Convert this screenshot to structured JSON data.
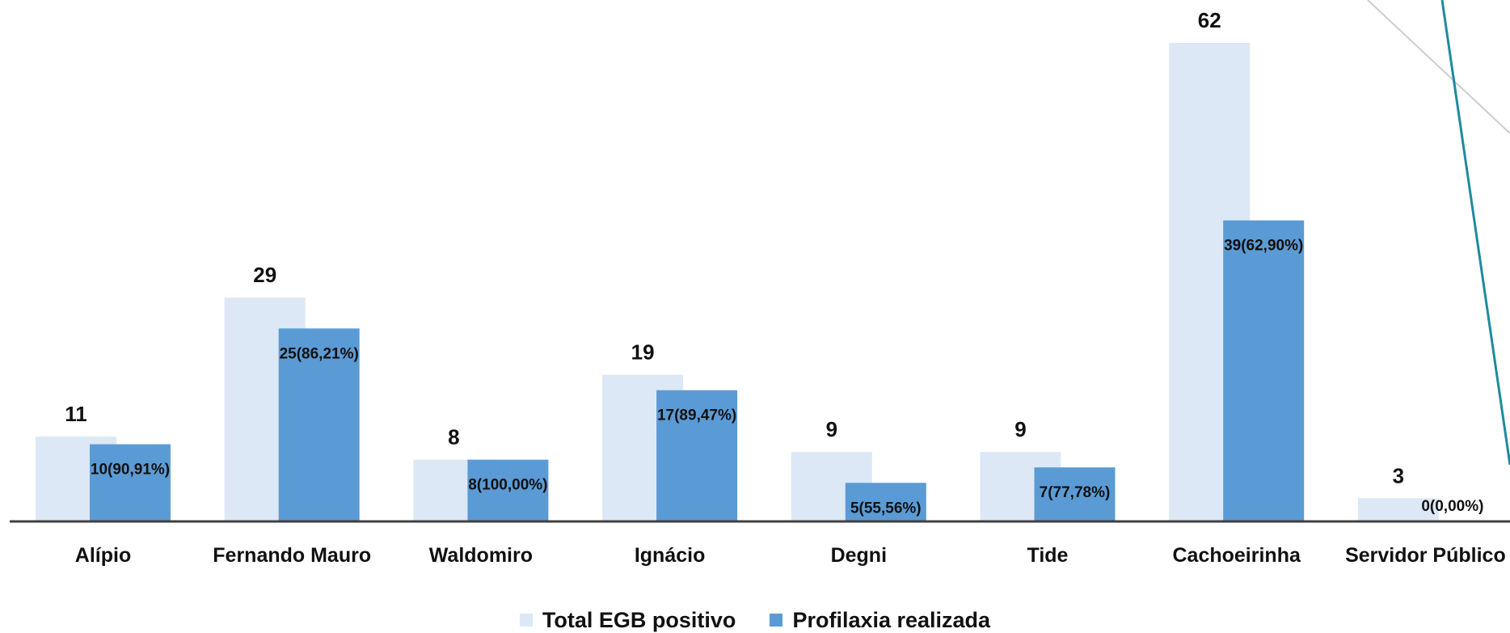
{
  "chart_data": {
    "type": "bar",
    "categories": [
      "Alípio",
      "Fernando Mauro",
      "Waldomiro",
      "Ignácio",
      "Degni",
      "Tide",
      "Cachoeirinha",
      "Servidor Público"
    ],
    "series": [
      {
        "name": "Total EGB positivo",
        "values": [
          11,
          29,
          8,
          19,
          9,
          9,
          62,
          3
        ],
        "labels": [
          "11",
          "29",
          "8",
          "19",
          "9",
          "9",
          "62",
          "3"
        ],
        "color": "#dce8f5"
      },
      {
        "name": "Profilaxia realizada",
        "values": [
          10,
          25,
          8,
          17,
          5,
          7,
          39,
          0
        ],
        "labels": [
          "10(90,91%)",
          "25(86,21%)",
          "8(100,00%)",
          "17(89,47%)",
          "5(55,56%)",
          "7(77,78%)",
          "39(62,90%)",
          "0(0,00%)"
        ],
        "color": "#5b9bd5"
      }
    ],
    "title": "",
    "xlabel": "",
    "ylabel": "",
    "ylim": [
      0,
      62
    ],
    "grid": false,
    "legend": "bottom"
  },
  "colors": {
    "axis": "#404040",
    "decor_line_teal": "#1d8a9e",
    "decor_line_gray": "#c8ced3"
  }
}
